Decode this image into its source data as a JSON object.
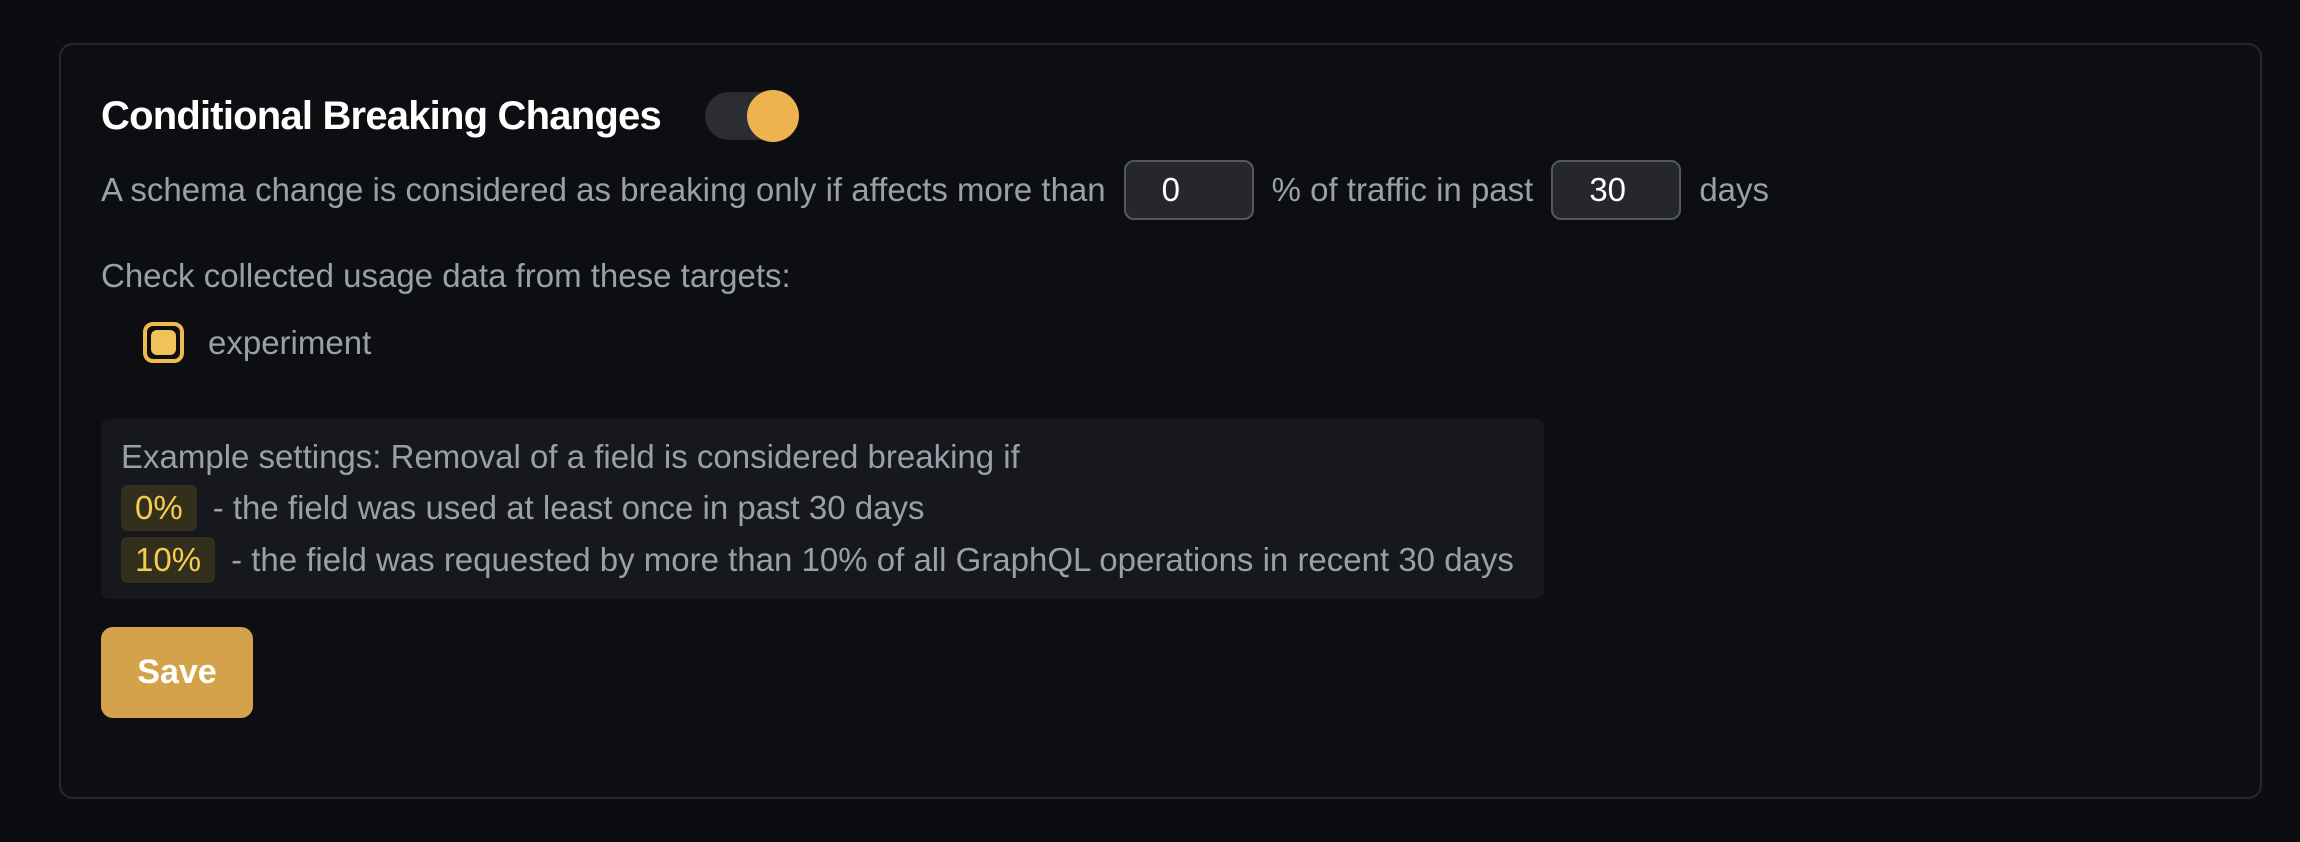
{
  "theme": {
    "page_bg": "#0b0d11",
    "card_border": "#26282d",
    "accent_yellow": "#edb34f",
    "muted_text": "#9aa0a8",
    "input_bg": "#25272c",
    "input_border": "#54585f",
    "example_box_bg": "#16181d",
    "badge_bg": "#332f1d",
    "badge_text": "#f3cd4d",
    "save_button_bg": "#d4a24b"
  },
  "card": {
    "title": "Conditional Breaking Changes",
    "toggle_state": "on",
    "save_label": "Save"
  },
  "threshold": {
    "text_before_percentage": "A schema change is considered as breaking only if affects more than",
    "percentage_value": "0",
    "text_between_inputs": "% of traffic in past",
    "period_value": "30",
    "text_after_period": "days"
  },
  "targets": {
    "heading": "Check collected usage data from these targets:",
    "items": [
      {
        "label": "experiment",
        "checked": true
      }
    ]
  },
  "example": {
    "intro": "Example settings: Removal of a field is considered breaking if",
    "rules": [
      {
        "badge": "0%",
        "text": "- the field was used at least once in past 30 days"
      },
      {
        "badge": "10%",
        "text": "- the field was requested by more than 10% of all GraphQL operations in recent 30 days"
      }
    ]
  }
}
